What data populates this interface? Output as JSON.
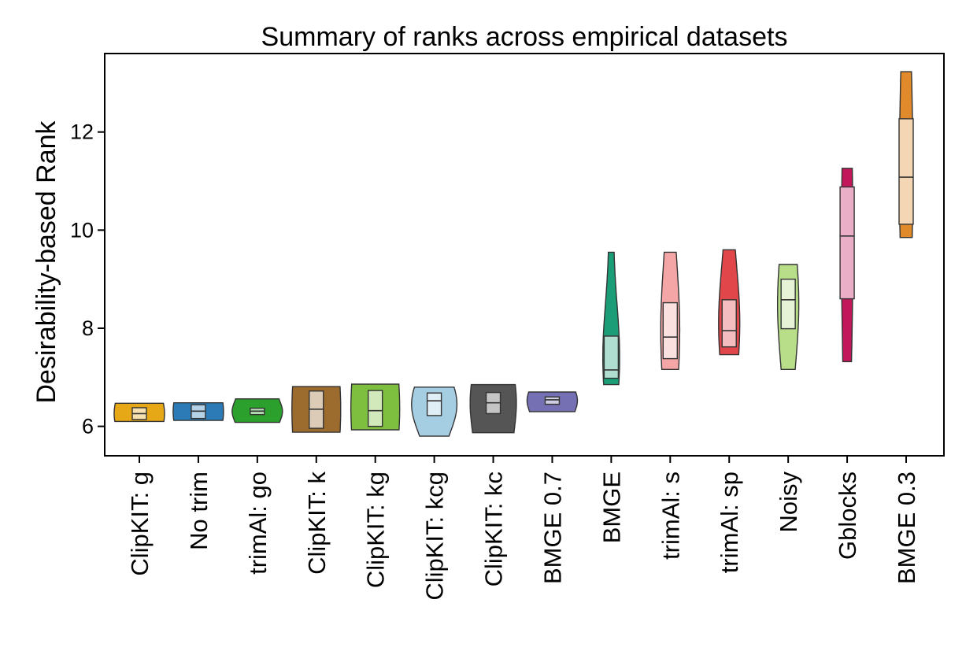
{
  "chart_data": {
    "type": "violin",
    "title": "Summary of ranks across empirical datasets",
    "xlabel": "",
    "ylabel": "Desirability-based Rank",
    "ylim": [
      5.4,
      13.6
    ],
    "yticks": [
      6,
      8,
      10,
      12
    ],
    "grid": false,
    "legend": "none",
    "categories": [
      "ClipKIT: g",
      "No trim",
      "trimAl: go",
      "ClipKIT: k",
      "ClipKIT: kg",
      "ClipKIT: kcg",
      "ClipKIT: kc",
      "BMGE 0.7",
      "BMGE",
      "trimAl: s",
      "trimAl: sp",
      "Noisy",
      "Gblocks",
      "BMGE 0.3"
    ],
    "series": [
      {
        "category": "ClipKIT: g",
        "color": "#E6A817",
        "min": 6.1,
        "q1": 6.14,
        "median": 6.26,
        "q3": 6.38,
        "max": 6.47
      },
      {
        "category": "No trim",
        "color": "#2C7BB6",
        "min": 6.12,
        "q1": 6.16,
        "median": 6.31,
        "q3": 6.44,
        "max": 6.48
      },
      {
        "category": "trimAl: go",
        "color": "#2CA02C",
        "min": 6.08,
        "q1": 6.24,
        "median": 6.31,
        "q3": 6.37,
        "max": 6.56
      },
      {
        "category": "ClipKIT: k",
        "color": "#9C6B2E",
        "min": 5.88,
        "q1": 5.96,
        "median": 6.35,
        "q3": 6.72,
        "max": 6.81
      },
      {
        "category": "ClipKIT: kg",
        "color": "#7FBF3F",
        "min": 5.93,
        "q1": 6.0,
        "median": 6.32,
        "q3": 6.73,
        "max": 6.86
      },
      {
        "category": "ClipKIT: kcg",
        "color": "#A6CEE3",
        "min": 5.8,
        "q1": 6.22,
        "median": 6.52,
        "q3": 6.68,
        "max": 6.8
      },
      {
        "category": "ClipKIT: kc",
        "color": "#555555",
        "min": 5.87,
        "q1": 6.26,
        "median": 6.48,
        "q3": 6.69,
        "max": 6.85
      },
      {
        "category": "BMGE 0.7",
        "color": "#7570B3",
        "min": 6.3,
        "q1": 6.45,
        "median": 6.54,
        "q3": 6.6,
        "max": 6.7
      },
      {
        "category": "BMGE",
        "color": "#1B9E77",
        "min": 6.85,
        "q1": 6.98,
        "median": 7.15,
        "q3": 7.84,
        "max": 9.55
      },
      {
        "category": "trimAl: s",
        "color": "#F4A6A6",
        "min": 7.16,
        "q1": 7.38,
        "median": 7.82,
        "q3": 8.52,
        "max": 9.55
      },
      {
        "category": "trimAl: sp",
        "color": "#E0464A",
        "min": 7.46,
        "q1": 7.62,
        "median": 7.95,
        "q3": 8.58,
        "max": 9.6
      },
      {
        "category": "Noisy",
        "color": "#B8DE8A",
        "min": 7.16,
        "q1": 7.99,
        "median": 8.58,
        "q3": 9.0,
        "max": 9.3
      },
      {
        "category": "Gblocks",
        "color": "#C2185B",
        "min": 7.32,
        "q1": 8.6,
        "median": 9.88,
        "q3": 10.88,
        "max": 11.26
      },
      {
        "category": "BMGE 0.3",
        "color": "#E08A2C",
        "min": 9.85,
        "q1": 10.12,
        "median": 11.08,
        "q3": 12.27,
        "max": 13.23
      }
    ]
  }
}
